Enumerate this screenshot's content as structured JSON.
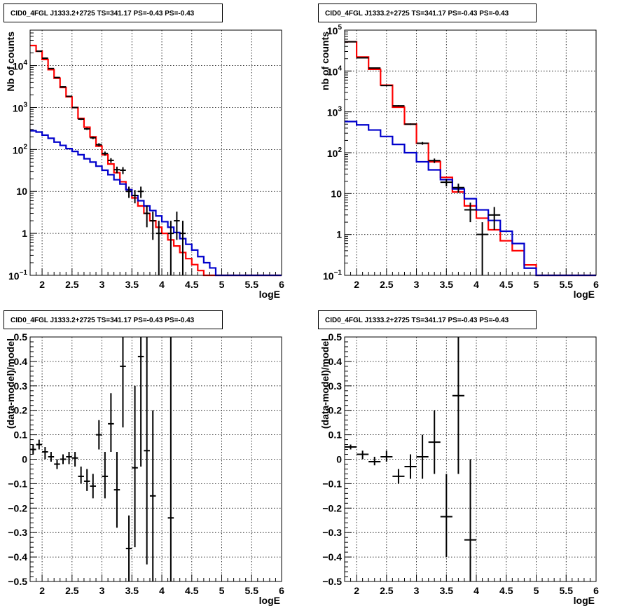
{
  "chart_data": [
    {
      "type": "line",
      "title": "CID0_4FGL J1333.2+2725 TS=341.17 PS=-0.43 PS=-0.43",
      "xlabel": "logE",
      "ylabel": "Nb of counts",
      "xlim": [
        1.8,
        6
      ],
      "ylim": [
        0.1,
        70000
      ],
      "log_y": true,
      "grid": true,
      "x_ticks": [
        "2",
        "2.5",
        "3",
        "3.5",
        "4",
        "4.5",
        "5",
        "5.5",
        "6"
      ],
      "y_ticks": [
        {
          "v": 0.1,
          "base": "10",
          "exp": "−1"
        },
        {
          "v": 1,
          "text": "1"
        },
        {
          "v": 10,
          "text": "10"
        },
        {
          "v": 100,
          "base": "10",
          "exp": "2"
        },
        {
          "v": 1000,
          "base": "10",
          "exp": "3"
        },
        {
          "v": 10000,
          "base": "10",
          "exp": "4"
        }
      ],
      "series": [
        {
          "color": "#ff0000",
          "kind": "step",
          "edges": [
            1.8,
            1.9,
            2.0,
            2.1,
            2.2,
            2.3,
            2.4,
            2.5,
            2.6,
            2.7,
            2.8,
            2.9,
            3.0,
            3.1,
            3.2,
            3.3,
            3.4,
            3.5,
            3.6,
            3.7,
            3.8,
            3.9,
            4.0,
            4.1,
            4.2,
            4.3,
            4.4,
            4.5,
            4.6,
            4.7,
            4.8,
            4.9,
            5.0,
            5.1,
            6.0
          ],
          "values": [
            30000,
            22000,
            14000,
            8000,
            5000,
            3000,
            1800,
            1000,
            550,
            340,
            200,
            120,
            75,
            45,
            28,
            17,
            11,
            7,
            4.5,
            3,
            2,
            1.4,
            1,
            0.7,
            0.5,
            0.35,
            0.25,
            0.18,
            0.13,
            0.1,
            0.1,
            0.1,
            0.1,
            0.1
          ]
        },
        {
          "color": "#0000cc",
          "kind": "step",
          "edges": [
            1.8,
            1.9,
            2.0,
            2.1,
            2.2,
            2.3,
            2.4,
            2.5,
            2.6,
            2.7,
            2.8,
            2.9,
            3.0,
            3.1,
            3.2,
            3.3,
            3.4,
            3.5,
            3.6,
            3.7,
            3.8,
            3.9,
            4.0,
            4.1,
            4.2,
            4.3,
            4.4,
            4.5,
            4.6,
            4.7,
            4.8,
            4.9,
            5.0,
            5.1,
            6.0
          ],
          "values": [
            280,
            260,
            220,
            185,
            150,
            125,
            105,
            90,
            75,
            60,
            50,
            40,
            32,
            25,
            19,
            15,
            11,
            8,
            6,
            4.5,
            3.5,
            2.6,
            1.9,
            1.4,
            1.05,
            0.75,
            0.55,
            0.4,
            0.28,
            0.2,
            0.15,
            0.1,
            0.1,
            0.1
          ]
        },
        {
          "color": "#000000",
          "kind": "errorbar",
          "points": [
            {
              "x": 1.95,
              "y": 22000,
              "xe": 0.05,
              "lo": 21500,
              "hi": 22500
            },
            {
              "x": 2.05,
              "y": 15000,
              "xe": 0.05,
              "lo": 14600,
              "hi": 15400
            },
            {
              "x": 2.15,
              "y": 8500,
              "xe": 0.05,
              "lo": 8300,
              "hi": 8700
            },
            {
              "x": 2.25,
              "y": 5200,
              "xe": 0.05,
              "lo": 5050,
              "hi": 5350
            },
            {
              "x": 2.35,
              "y": 3100,
              "xe": 0.05,
              "lo": 3000,
              "hi": 3200
            },
            {
              "x": 2.45,
              "y": 1850,
              "xe": 0.05,
              "lo": 1780,
              "hi": 1920
            },
            {
              "x": 2.55,
              "y": 1000,
              "xe": 0.05,
              "lo": 960,
              "hi": 1040
            },
            {
              "x": 2.65,
              "y": 530,
              "xe": 0.05,
              "lo": 505,
              "hi": 555
            },
            {
              "x": 2.75,
              "y": 310,
              "xe": 0.05,
              "lo": 293,
              "hi": 327
            },
            {
              "x": 2.85,
              "y": 190,
              "xe": 0.05,
              "lo": 177,
              "hi": 203
            },
            {
              "x": 2.95,
              "y": 130,
              "xe": 0.05,
              "lo": 119,
              "hi": 141
            },
            {
              "x": 3.05,
              "y": 80,
              "xe": 0.05,
              "lo": 71,
              "hi": 89
            },
            {
              "x": 3.15,
              "y": 55,
              "xe": 0.05,
              "lo": 48,
              "hi": 62
            },
            {
              "x": 3.25,
              "y": 33,
              "xe": 0.05,
              "lo": 27,
              "hi": 39
            },
            {
              "x": 3.35,
              "y": 32,
              "xe": 0.05,
              "lo": 26,
              "hi": 38
            },
            {
              "x": 3.45,
              "y": 10,
              "xe": 0.05,
              "lo": 7,
              "hi": 13
            },
            {
              "x": 3.55,
              "y": 8,
              "xe": 0.05,
              "lo": 5.2,
              "hi": 10.8
            },
            {
              "x": 3.65,
              "y": 10,
              "xe": 0.05,
              "lo": 7,
              "hi": 13
            },
            {
              "x": 3.75,
              "y": 3,
              "xe": 0.05,
              "lo": 1.4,
              "hi": 4.6
            },
            {
              "x": 3.85,
              "y": 2,
              "xe": 0.05,
              "lo": 0.7,
              "hi": 3.3
            },
            {
              "x": 3.95,
              "y": 1,
              "xe": 0.05,
              "lo": 0.1,
              "hi": 2
            },
            {
              "x": 4.15,
              "y": 1,
              "xe": 0.05,
              "lo": 0.1,
              "hi": 2
            },
            {
              "x": 4.25,
              "y": 2,
              "xe": 0.05,
              "lo": 0.7,
              "hi": 3.3
            },
            {
              "x": 4.35,
              "y": 1,
              "xe": 0.05,
              "lo": 0.1,
              "hi": 2
            }
          ]
        }
      ]
    },
    {
      "type": "line",
      "title": "CID0_4FGL J1333.2+2725 TS=341.17 PS=-0.43 PS=-0.43",
      "xlabel": "logE",
      "ylabel": "nb of counts",
      "xlim": [
        1.8,
        6
      ],
      "ylim": [
        0.1,
        100000
      ],
      "log_y": true,
      "grid": true,
      "x_ticks": [
        "2",
        "2.5",
        "3",
        "3.5",
        "4",
        "4.5",
        "5",
        "5.5",
        "6"
      ],
      "y_ticks": [
        {
          "v": 0.1,
          "base": "10",
          "exp": "−1"
        },
        {
          "v": 1,
          "text": "1"
        },
        {
          "v": 10,
          "text": "10"
        },
        {
          "v": 100,
          "base": "10",
          "exp": "2"
        },
        {
          "v": 1000,
          "base": "10",
          "exp": "3"
        },
        {
          "v": 10000,
          "base": "10",
          "exp": "4"
        },
        {
          "v": 100000,
          "base": "10",
          "exp": "5"
        }
      ],
      "series": [
        {
          "color": "#ff0000",
          "kind": "step",
          "edges": [
            1.8,
            2.0,
            2.2,
            2.4,
            2.6,
            2.8,
            3.0,
            3.2,
            3.4,
            3.6,
            3.8,
            4.0,
            4.2,
            4.4,
            4.6,
            4.8,
            5.0,
            6.0
          ],
          "values": [
            52000,
            22000,
            11000,
            4500,
            1300,
            500,
            170,
            60,
            25,
            11,
            5,
            2.5,
            1.3,
            0.7,
            0.4,
            0.18,
            0.1
          ]
        },
        {
          "color": "#0000cc",
          "kind": "step",
          "edges": [
            1.8,
            2.0,
            2.2,
            2.4,
            2.6,
            2.8,
            3.0,
            3.2,
            3.4,
            3.6,
            3.8,
            4.0,
            4.2,
            4.4,
            4.6,
            4.8,
            5.0,
            6.0
          ],
          "values": [
            580,
            480,
            360,
            250,
            160,
            100,
            60,
            38,
            22,
            13,
            7.5,
            4,
            2.2,
            1.2,
            0.6,
            0.15,
            0.1
          ]
        },
        {
          "color": "#000000",
          "kind": "errorbar",
          "points": [
            {
              "x": 1.9,
              "y": 52000,
              "xe": 0.1,
              "lo": 51500,
              "hi": 52500
            },
            {
              "x": 2.1,
              "y": 21000,
              "xe": 0.1,
              "lo": 20700,
              "hi": 21300
            },
            {
              "x": 2.3,
              "y": 11800,
              "xe": 0.1,
              "lo": 11500,
              "hi": 12100
            },
            {
              "x": 2.5,
              "y": 4400,
              "xe": 0.1,
              "lo": 4300,
              "hi": 4500
            },
            {
              "x": 2.7,
              "y": 1400,
              "xe": 0.1,
              "lo": 1350,
              "hi": 1450
            },
            {
              "x": 2.9,
              "y": 500,
              "xe": 0.1,
              "lo": 478,
              "hi": 522
            },
            {
              "x": 3.1,
              "y": 170,
              "xe": 0.1,
              "lo": 157,
              "hi": 183
            },
            {
              "x": 3.3,
              "y": 64,
              "xe": 0.1,
              "lo": 56,
              "hi": 72
            },
            {
              "x": 3.5,
              "y": 19,
              "xe": 0.1,
              "lo": 15,
              "hi": 23
            },
            {
              "x": 3.7,
              "y": 14,
              "xe": 0.1,
              "lo": 10.5,
              "hi": 17.5
            },
            {
              "x": 3.9,
              "y": 4,
              "xe": 0.1,
              "lo": 2,
              "hi": 6
            },
            {
              "x": 4.1,
              "y": 1,
              "xe": 0.1,
              "lo": 0.1,
              "hi": 2
            },
            {
              "x": 4.3,
              "y": 3,
              "xe": 0.1,
              "lo": 1.3,
              "hi": 4.7
            }
          ]
        }
      ]
    },
    {
      "type": "scatter",
      "title": "CID0_4FGL J1333.2+2725 TS=341.17 PS=-0.43 PS=-0.43",
      "xlabel": "logE",
      "ylabel": "(data-model)/model",
      "xlim": [
        1.8,
        6
      ],
      "ylim": [
        -0.5,
        0.5
      ],
      "log_y": false,
      "grid": true,
      "x_ticks": [
        "2",
        "2.5",
        "3",
        "3.5",
        "4",
        "4.5",
        "5",
        "5.5",
        "6"
      ],
      "y_ticks": [
        {
          "v": -0.5,
          "text": "−0.5"
        },
        {
          "v": -0.4,
          "text": "−0.4"
        },
        {
          "v": -0.3,
          "text": "−0.3"
        },
        {
          "v": -0.2,
          "text": "−0.2"
        },
        {
          "v": -0.1,
          "text": "−0.1"
        },
        {
          "v": 0,
          "text": "0"
        },
        {
          "v": 0.1,
          "text": "0.1"
        },
        {
          "v": 0.2,
          "text": "0.2"
        },
        {
          "v": 0.3,
          "text": "0.3"
        },
        {
          "v": 0.4,
          "text": "0.4"
        },
        {
          "v": 0.5,
          "text": "0.5"
        }
      ],
      "series": [
        {
          "color": "#000000",
          "kind": "errorbar",
          "points": [
            {
              "x": 1.85,
              "y": 0.04,
              "xe": 0.05,
              "lo": 0.02,
              "hi": 0.06
            },
            {
              "x": 1.95,
              "y": 0.06,
              "xe": 0.05,
              "lo": 0.04,
              "hi": 0.08
            },
            {
              "x": 2.05,
              "y": 0.03,
              "xe": 0.05,
              "lo": 0.0,
              "hi": 0.05
            },
            {
              "x": 2.15,
              "y": 0.01,
              "xe": 0.05,
              "lo": -0.01,
              "hi": 0.03
            },
            {
              "x": 2.25,
              "y": -0.02,
              "xe": 0.05,
              "lo": -0.04,
              "hi": 0.0
            },
            {
              "x": 2.35,
              "y": 0.0,
              "xe": 0.05,
              "lo": -0.02,
              "hi": 0.02
            },
            {
              "x": 2.45,
              "y": 0.01,
              "xe": 0.05,
              "lo": -0.02,
              "hi": 0.03
            },
            {
              "x": 2.55,
              "y": 0.005,
              "xe": 0.05,
              "lo": -0.03,
              "hi": 0.03
            },
            {
              "x": 2.65,
              "y": -0.07,
              "xe": 0.05,
              "lo": -0.1,
              "hi": -0.03
            },
            {
              "x": 2.75,
              "y": -0.09,
              "xe": 0.05,
              "lo": -0.13,
              "hi": -0.04
            },
            {
              "x": 2.85,
              "y": -0.11,
              "xe": 0.05,
              "lo": -0.16,
              "hi": -0.06
            },
            {
              "x": 2.95,
              "y": 0.1,
              "xe": 0.05,
              "lo": 0.04,
              "hi": 0.16
            },
            {
              "x": 3.05,
              "y": -0.07,
              "xe": 0.05,
              "lo": -0.16,
              "hi": 0.03
            },
            {
              "x": 3.15,
              "y": 0.145,
              "xe": 0.05,
              "lo": 0.03,
              "hi": 0.27
            },
            {
              "x": 3.25,
              "y": -0.125,
              "xe": 0.05,
              "lo": -0.28,
              "hi": 0.03
            },
            {
              "x": 3.35,
              "y": 0.38,
              "xe": 0.05,
              "lo": 0.13,
              "hi": 0.5
            },
            {
              "x": 3.45,
              "y": -0.365,
              "xe": 0.05,
              "lo": -0.5,
              "hi": -0.23
            },
            {
              "x": 3.55,
              "y": -0.035,
              "xe": 0.05,
              "lo": -0.36,
              "hi": 0.3
            },
            {
              "x": 3.65,
              "y": 0.42,
              "xe": 0.05,
              "lo": -0.03,
              "hi": 0.5
            },
            {
              "x": 3.75,
              "y": 0.035,
              "xe": 0.05,
              "lo": -0.43,
              "hi": 0.5
            },
            {
              "x": 3.85,
              "y": -0.15,
              "xe": 0.05,
              "lo": -0.5,
              "hi": 0.2
            },
            {
              "x": 4.15,
              "y": -0.24,
              "xe": 0.05,
              "lo": -0.5,
              "hi": 0.5
            }
          ]
        }
      ]
    },
    {
      "type": "scatter",
      "title": "CID0_4FGL J1333.2+2725 TS=341.17 PS=-0.43 PS=-0.43",
      "xlabel": "logE",
      "ylabel": "(data-model)/model",
      "xlim": [
        1.8,
        6
      ],
      "ylim": [
        -0.5,
        0.5
      ],
      "log_y": false,
      "grid": true,
      "x_ticks": [
        "2",
        "2.5",
        "3",
        "3.5",
        "4",
        "4.5",
        "5",
        "5.5",
        "6"
      ],
      "y_ticks": [
        {
          "v": -0.5,
          "text": "−0.5"
        },
        {
          "v": -0.4,
          "text": "−0.4"
        },
        {
          "v": -0.3,
          "text": "−0.3"
        },
        {
          "v": -0.2,
          "text": "−0.2"
        },
        {
          "v": -0.1,
          "text": "−0.1"
        },
        {
          "v": 0,
          "text": "0"
        },
        {
          "v": 0.1,
          "text": "0.1"
        },
        {
          "v": 0.2,
          "text": "0.2"
        },
        {
          "v": 0.3,
          "text": "0.3"
        },
        {
          "v": 0.4,
          "text": "0.4"
        },
        {
          "v": 0.5,
          "text": "0.5"
        }
      ],
      "series": [
        {
          "color": "#000000",
          "kind": "errorbar",
          "points": [
            {
              "x": 1.9,
              "y": 0.05,
              "xe": 0.1,
              "lo": 0.04,
              "hi": 0.06
            },
            {
              "x": 2.1,
              "y": 0.02,
              "xe": 0.1,
              "lo": 0.0,
              "hi": 0.035
            },
            {
              "x": 2.3,
              "y": -0.01,
              "xe": 0.1,
              "lo": -0.025,
              "hi": 0.01
            },
            {
              "x": 2.5,
              "y": 0.01,
              "xe": 0.1,
              "lo": -0.01,
              "hi": 0.035
            },
            {
              "x": 2.7,
              "y": -0.07,
              "xe": 0.1,
              "lo": -0.1,
              "hi": -0.04
            },
            {
              "x": 2.9,
              "y": -0.03,
              "xe": 0.1,
              "lo": -0.08,
              "hi": 0.02
            },
            {
              "x": 3.1,
              "y": 0.01,
              "xe": 0.1,
              "lo": -0.08,
              "hi": 0.1
            },
            {
              "x": 3.3,
              "y": 0.07,
              "xe": 0.1,
              "lo": -0.06,
              "hi": 0.2
            },
            {
              "x": 3.5,
              "y": -0.235,
              "xe": 0.1,
              "lo": -0.4,
              "hi": -0.06
            },
            {
              "x": 3.7,
              "y": 0.26,
              "xe": 0.1,
              "lo": -0.06,
              "hi": 0.5
            },
            {
              "x": 3.9,
              "y": -0.33,
              "xe": 0.1,
              "lo": -0.5,
              "hi": 0.0
            }
          ]
        }
      ]
    }
  ]
}
